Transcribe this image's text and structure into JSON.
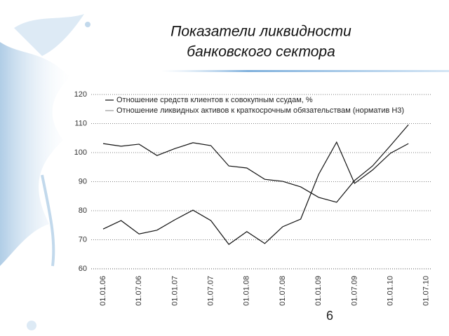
{
  "chart_data": {
    "type": "line",
    "title": [
      "Показатели ликвидности",
      "банковского сектора"
    ],
    "categories": [
      "01.01.06",
      null,
      "01.07.06",
      null,
      "01.01.07",
      null,
      "01.07.07",
      null,
      "01.01.08",
      null,
      "01.07.08",
      null,
      "01.01.09",
      null,
      "01.07.09",
      null,
      "01.01.10",
      null,
      "01.07.10"
    ],
    "series": [
      {
        "name": "Отношение средств клиентов к совокупным ссудам, %",
        "color": "#111111",
        "values": [
          103.1,
          102.2,
          102.9,
          99,
          101.4,
          103.4,
          102.4,
          95.4,
          94.7,
          90.8,
          90.1,
          88.2,
          84.6,
          82.9,
          90.4,
          95.4,
          102.4,
          109.6,
          null
        ]
      },
      {
        "name": "Отношение ликвидных активов к краткосрочным обязательствам (норматив Н3)",
        "color": "#111111",
        "values": [
          73.7,
          76.6,
          72,
          73.3,
          76.9,
          80.2,
          76.6,
          68.4,
          72.8,
          68.7,
          74.5,
          77.1,
          92.5,
          103.6,
          89.4,
          94,
          99.8,
          103.1,
          null
        ]
      }
    ],
    "ylim": [
      60,
      120
    ],
    "yticks": [
      60,
      70,
      80,
      90,
      100,
      110,
      120
    ],
    "grid": true,
    "page_number": "6"
  }
}
